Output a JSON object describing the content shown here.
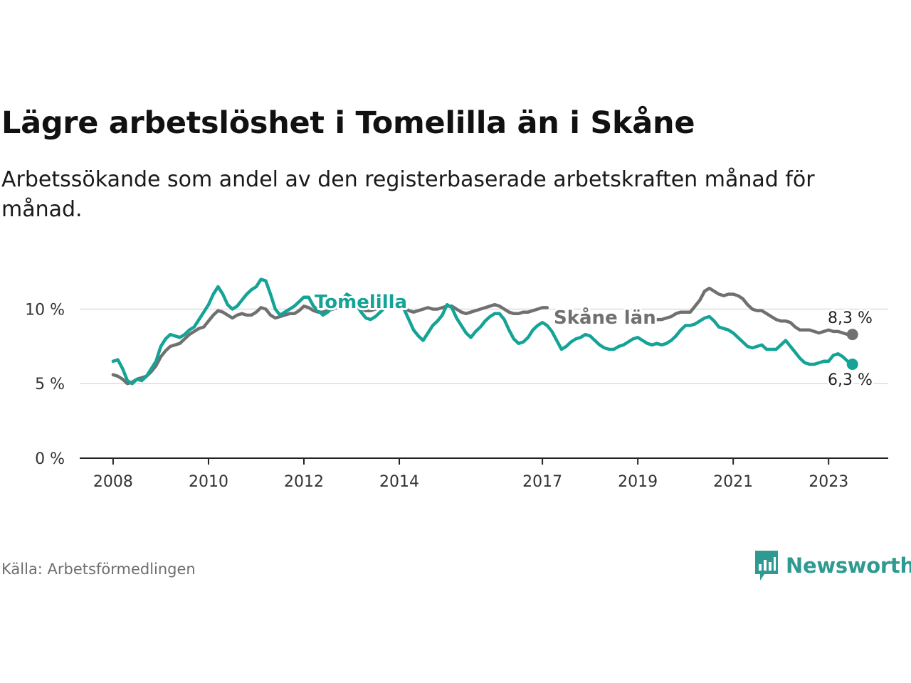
{
  "header": {
    "title": "Lägre arbetslöshet i Tomelilla än i Skåne",
    "subtitle": "Arbetssökande som andel av den registerbaserade arbetskraften månad för månad."
  },
  "footer": {
    "source": "Källa: Arbetsförmedlingen",
    "brand": "Newsworthy"
  },
  "colors": {
    "tomelilla": "#14a396",
    "skane": "#707070",
    "grid": "#dcdcdc",
    "axis": "#222222",
    "brand": "#2e9a91"
  },
  "chart_data": {
    "type": "line",
    "title": "Lägre arbetslöshet i Tomelilla än i Skåne",
    "xlabel": "",
    "ylabel": "",
    "ylim": [
      0,
      12.6
    ],
    "xlim": [
      2007.3,
      2024.25
    ],
    "y_ticks": [
      {
        "value": 0,
        "label": "0 %"
      },
      {
        "value": 5,
        "label": "5 %"
      },
      {
        "value": 10,
        "label": "10 %"
      }
    ],
    "x_ticks": [
      {
        "value": 2008,
        "label": "2008"
      },
      {
        "value": 2010,
        "label": "2010"
      },
      {
        "value": 2012,
        "label": "2012"
      },
      {
        "value": 2014,
        "label": "2014"
      },
      {
        "value": 2017,
        "label": "2017"
      },
      {
        "value": 2019,
        "label": "2019"
      },
      {
        "value": 2021,
        "label": "2021"
      },
      {
        "value": 2023,
        "label": "2023"
      }
    ],
    "series": [
      {
        "name": "Tomelilla",
        "label": "Tomelilla",
        "end_label": "6,3 %",
        "points": [
          [
            2008.0,
            6.5
          ],
          [
            2008.1,
            6.6
          ],
          [
            2008.2,
            6.0
          ],
          [
            2008.3,
            5.2
          ],
          [
            2008.4,
            5.0
          ],
          [
            2008.5,
            5.3
          ],
          [
            2008.6,
            5.2
          ],
          [
            2008.7,
            5.5
          ],
          [
            2008.8,
            6.0
          ],
          [
            2008.9,
            6.5
          ],
          [
            2009.0,
            7.5
          ],
          [
            2009.1,
            8.0
          ],
          [
            2009.2,
            8.3
          ],
          [
            2009.3,
            8.2
          ],
          [
            2009.4,
            8.1
          ],
          [
            2009.5,
            8.3
          ],
          [
            2009.6,
            8.6
          ],
          [
            2009.7,
            8.8
          ],
          [
            2009.8,
            9.3
          ],
          [
            2009.9,
            9.8
          ],
          [
            2010.0,
            10.3
          ],
          [
            2010.1,
            11.0
          ],
          [
            2010.2,
            11.5
          ],
          [
            2010.3,
            11.0
          ],
          [
            2010.4,
            10.3
          ],
          [
            2010.5,
            10.0
          ],
          [
            2010.6,
            10.2
          ],
          [
            2010.7,
            10.6
          ],
          [
            2010.8,
            11.0
          ],
          [
            2010.9,
            11.3
          ],
          [
            2011.0,
            11.5
          ],
          [
            2011.1,
            12.0
          ],
          [
            2011.2,
            11.9
          ],
          [
            2011.3,
            11.0
          ],
          [
            2011.4,
            10.0
          ],
          [
            2011.5,
            9.6
          ],
          [
            2011.6,
            9.8
          ],
          [
            2011.7,
            10.0
          ],
          [
            2011.8,
            10.2
          ],
          [
            2011.9,
            10.5
          ],
          [
            2012.0,
            10.8
          ],
          [
            2012.1,
            10.8
          ],
          [
            2012.2,
            10.2
          ],
          [
            2012.3,
            9.9
          ],
          [
            2012.4,
            9.6
          ],
          [
            2012.5,
            9.8
          ],
          [
            2012.6,
            10.1
          ],
          [
            2012.7,
            10.3
          ],
          [
            2012.8,
            10.6
          ],
          [
            2012.9,
            11.0
          ],
          [
            2013.0,
            10.8
          ],
          [
            2013.1,
            10.3
          ],
          [
            2013.2,
            9.8
          ],
          [
            2013.3,
            9.4
          ],
          [
            2013.4,
            9.3
          ],
          [
            2013.5,
            9.5
          ],
          [
            2013.6,
            9.8
          ],
          [
            2013.7,
            10.1
          ],
          [
            2013.8,
            10.4
          ],
          [
            2013.9,
            10.6
          ],
          [
            2014.0,
            10.5
          ],
          [
            2014.1,
            10.0
          ],
          [
            2014.2,
            9.3
          ],
          [
            2014.3,
            8.6
          ],
          [
            2014.4,
            8.2
          ],
          [
            2014.5,
            7.9
          ],
          [
            2014.6,
            8.4
          ],
          [
            2014.7,
            8.9
          ],
          [
            2014.8,
            9.2
          ],
          [
            2014.9,
            9.6
          ],
          [
            2015.0,
            10.3
          ],
          [
            2015.1,
            10.1
          ],
          [
            2015.2,
            9.4
          ],
          [
            2015.3,
            8.9
          ],
          [
            2015.4,
            8.4
          ],
          [
            2015.5,
            8.1
          ],
          [
            2015.6,
            8.5
          ],
          [
            2015.7,
            8.8
          ],
          [
            2015.8,
            9.2
          ],
          [
            2015.9,
            9.5
          ],
          [
            2016.0,
            9.7
          ],
          [
            2016.1,
            9.7
          ],
          [
            2016.2,
            9.3
          ],
          [
            2016.3,
            8.6
          ],
          [
            2016.4,
            8.0
          ],
          [
            2016.5,
            7.7
          ],
          [
            2016.6,
            7.8
          ],
          [
            2016.7,
            8.1
          ],
          [
            2016.8,
            8.6
          ],
          [
            2016.9,
            8.9
          ],
          [
            2017.0,
            9.1
          ],
          [
            2017.1,
            8.9
          ],
          [
            2017.2,
            8.5
          ],
          [
            2017.3,
            7.9
          ],
          [
            2017.4,
            7.3
          ],
          [
            2017.5,
            7.5
          ],
          [
            2017.6,
            7.8
          ],
          [
            2017.7,
            8.0
          ],
          [
            2017.8,
            8.1
          ],
          [
            2017.9,
            8.3
          ],
          [
            2018.0,
            8.2
          ],
          [
            2018.1,
            7.9
          ],
          [
            2018.2,
            7.6
          ],
          [
            2018.3,
            7.4
          ],
          [
            2018.4,
            7.3
          ],
          [
            2018.5,
            7.3
          ],
          [
            2018.6,
            7.5
          ],
          [
            2018.7,
            7.6
          ],
          [
            2018.8,
            7.8
          ],
          [
            2018.9,
            8.0
          ],
          [
            2019.0,
            8.1
          ],
          [
            2019.1,
            7.9
          ],
          [
            2019.2,
            7.7
          ],
          [
            2019.3,
            7.6
          ],
          [
            2019.4,
            7.7
          ],
          [
            2019.5,
            7.6
          ],
          [
            2019.6,
            7.7
          ],
          [
            2019.7,
            7.9
          ],
          [
            2019.8,
            8.2
          ],
          [
            2019.9,
            8.6
          ],
          [
            2020.0,
            8.9
          ],
          [
            2020.1,
            8.9
          ],
          [
            2020.2,
            9.0
          ],
          [
            2020.3,
            9.2
          ],
          [
            2020.4,
            9.4
          ],
          [
            2020.5,
            9.5
          ],
          [
            2020.6,
            9.2
          ],
          [
            2020.7,
            8.8
          ],
          [
            2020.8,
            8.7
          ],
          [
            2020.9,
            8.6
          ],
          [
            2021.0,
            8.4
          ],
          [
            2021.1,
            8.1
          ],
          [
            2021.2,
            7.8
          ],
          [
            2021.3,
            7.5
          ],
          [
            2021.4,
            7.4
          ],
          [
            2021.5,
            7.5
          ],
          [
            2021.6,
            7.6
          ],
          [
            2021.7,
            7.3
          ],
          [
            2021.8,
            7.3
          ],
          [
            2021.9,
            7.3
          ],
          [
            2022.0,
            7.6
          ],
          [
            2022.1,
            7.9
          ],
          [
            2022.2,
            7.5
          ],
          [
            2022.3,
            7.1
          ],
          [
            2022.4,
            6.7
          ],
          [
            2022.5,
            6.4
          ],
          [
            2022.6,
            6.3
          ],
          [
            2022.7,
            6.3
          ],
          [
            2022.8,
            6.4
          ],
          [
            2022.9,
            6.5
          ],
          [
            2023.0,
            6.5
          ],
          [
            2023.1,
            6.9
          ],
          [
            2023.2,
            7.0
          ],
          [
            2023.3,
            6.8
          ],
          [
            2023.4,
            6.5
          ],
          [
            2023.5,
            6.3
          ]
        ]
      },
      {
        "name": "Skåne län",
        "label": "Skåne län",
        "end_label": "8,3 %",
        "points": [
          [
            2008.0,
            5.6
          ],
          [
            2008.1,
            5.5
          ],
          [
            2008.2,
            5.3
          ],
          [
            2008.3,
            5.0
          ],
          [
            2008.4,
            5.1
          ],
          [
            2008.5,
            5.3
          ],
          [
            2008.6,
            5.4
          ],
          [
            2008.7,
            5.5
          ],
          [
            2008.8,
            5.8
          ],
          [
            2008.9,
            6.2
          ],
          [
            2009.0,
            6.8
          ],
          [
            2009.1,
            7.2
          ],
          [
            2009.2,
            7.5
          ],
          [
            2009.3,
            7.6
          ],
          [
            2009.4,
            7.7
          ],
          [
            2009.5,
            8.0
          ],
          [
            2009.6,
            8.3
          ],
          [
            2009.7,
            8.5
          ],
          [
            2009.8,
            8.7
          ],
          [
            2009.9,
            8.8
          ],
          [
            2010.0,
            9.2
          ],
          [
            2010.1,
            9.6
          ],
          [
            2010.2,
            9.9
          ],
          [
            2010.3,
            9.8
          ],
          [
            2010.4,
            9.6
          ],
          [
            2010.5,
            9.4
          ],
          [
            2010.6,
            9.6
          ],
          [
            2010.7,
            9.7
          ],
          [
            2010.8,
            9.6
          ],
          [
            2010.9,
            9.6
          ],
          [
            2011.0,
            9.8
          ],
          [
            2011.1,
            10.1
          ],
          [
            2011.2,
            10.0
          ],
          [
            2011.3,
            9.6
          ],
          [
            2011.4,
            9.4
          ],
          [
            2011.5,
            9.5
          ],
          [
            2011.6,
            9.6
          ],
          [
            2011.7,
            9.7
          ],
          [
            2011.8,
            9.7
          ],
          [
            2011.9,
            9.9
          ],
          [
            2012.0,
            10.2
          ],
          [
            2012.1,
            10.1
          ],
          [
            2012.2,
            9.9
          ],
          [
            2012.3,
            9.8
          ],
          [
            2012.4,
            9.8
          ],
          [
            2012.5,
            9.9
          ],
          [
            2012.6,
            10.0
          ],
          [
            2012.7,
            10.1
          ],
          [
            2012.8,
            10.1
          ],
          [
            2012.9,
            10.2
          ],
          [
            2013.0,
            10.3
          ],
          [
            2013.1,
            10.2
          ],
          [
            2013.2,
            10.0
          ],
          [
            2013.3,
            9.9
          ],
          [
            2013.4,
            9.9
          ],
          [
            2013.5,
            10.0
          ],
          [
            2013.6,
            10.1
          ],
          [
            2013.7,
            10.2
          ],
          [
            2013.8,
            10.2
          ],
          [
            2013.9,
            10.2
          ],
          [
            2014.0,
            10.2
          ],
          [
            2014.1,
            10.1
          ],
          [
            2014.2,
            9.9
          ],
          [
            2014.3,
            9.8
          ],
          [
            2014.4,
            9.9
          ],
          [
            2014.5,
            10.0
          ],
          [
            2014.6,
            10.1
          ],
          [
            2014.7,
            10.0
          ],
          [
            2014.8,
            10.0
          ],
          [
            2014.9,
            10.1
          ],
          [
            2015.0,
            10.2
          ],
          [
            2015.1,
            10.2
          ],
          [
            2015.2,
            10.0
          ],
          [
            2015.3,
            9.8
          ],
          [
            2015.4,
            9.7
          ],
          [
            2015.5,
            9.8
          ],
          [
            2015.6,
            9.9
          ],
          [
            2015.7,
            10.0
          ],
          [
            2015.8,
            10.1
          ],
          [
            2015.9,
            10.2
          ],
          [
            2016.0,
            10.3
          ],
          [
            2016.1,
            10.2
          ],
          [
            2016.2,
            10.0
          ],
          [
            2016.3,
            9.8
          ],
          [
            2016.4,
            9.7
          ],
          [
            2016.5,
            9.7
          ],
          [
            2016.6,
            9.8
          ],
          [
            2016.7,
            9.8
          ],
          [
            2016.8,
            9.9
          ],
          [
            2016.9,
            10.0
          ],
          [
            2017.0,
            10.1
          ],
          [
            2017.1,
            10.1
          ]
        ],
        "points_tail": [
          [
            2019.3,
            9.2
          ],
          [
            2019.4,
            9.3
          ],
          [
            2019.5,
            9.3
          ],
          [
            2019.6,
            9.4
          ],
          [
            2019.7,
            9.5
          ],
          [
            2019.8,
            9.7
          ],
          [
            2019.9,
            9.8
          ],
          [
            2020.0,
            9.8
          ],
          [
            2020.1,
            9.8
          ],
          [
            2020.2,
            10.2
          ],
          [
            2020.3,
            10.6
          ],
          [
            2020.4,
            11.2
          ],
          [
            2020.5,
            11.4
          ],
          [
            2020.6,
            11.2
          ],
          [
            2020.7,
            11.0
          ],
          [
            2020.8,
            10.9
          ],
          [
            2020.9,
            11.0
          ],
          [
            2021.0,
            11.0
          ],
          [
            2021.1,
            10.9
          ],
          [
            2021.2,
            10.7
          ],
          [
            2021.3,
            10.3
          ],
          [
            2021.4,
            10.0
          ],
          [
            2021.5,
            9.9
          ],
          [
            2021.6,
            9.9
          ],
          [
            2021.7,
            9.7
          ],
          [
            2021.8,
            9.5
          ],
          [
            2021.9,
            9.3
          ],
          [
            2022.0,
            9.2
          ],
          [
            2022.1,
            9.2
          ],
          [
            2022.2,
            9.1
          ],
          [
            2022.3,
            8.8
          ],
          [
            2022.4,
            8.6
          ],
          [
            2022.5,
            8.6
          ],
          [
            2022.6,
            8.6
          ],
          [
            2022.7,
            8.5
          ],
          [
            2022.8,
            8.4
          ],
          [
            2022.9,
            8.5
          ],
          [
            2023.0,
            8.6
          ],
          [
            2023.1,
            8.5
          ],
          [
            2023.2,
            8.5
          ],
          [
            2023.3,
            8.4
          ],
          [
            2023.4,
            8.3
          ],
          [
            2023.5,
            8.3
          ]
        ]
      }
    ]
  }
}
